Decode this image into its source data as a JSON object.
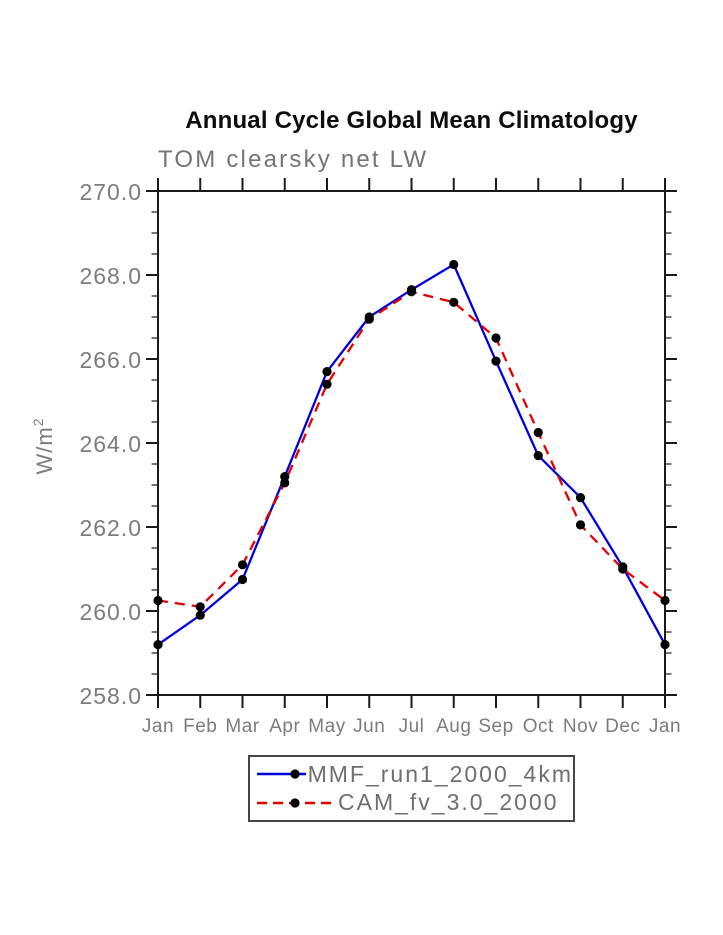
{
  "page": {
    "background": "#ffffff"
  },
  "header": {
    "title": "Annual Cycle Global Mean Climatology",
    "subtitle": "TOM clearsky net LW"
  },
  "chart_data": {
    "type": "line",
    "title": "Annual Cycle Global Mean Climatology",
    "subtitle": "TOM clearsky net LW",
    "ylabel_base": "W/m",
    "ylabel_exponent": "2",
    "categories": [
      "Jan",
      "Feb",
      "Mar",
      "Apr",
      "May",
      "Jun",
      "Jul",
      "Aug",
      "Sep",
      "Oct",
      "Nov",
      "Dec",
      "Jan"
    ],
    "series": [
      {
        "name": "MMF_run1_2000_4km",
        "color": "#0000e0",
        "line_style": "solid",
        "marker": "filled-circle",
        "marker_color": "#000000",
        "values": [
          259.2,
          259.9,
          260.75,
          263.2,
          265.7,
          267.0,
          267.65,
          268.25,
          265.95,
          263.7,
          262.7,
          261.05,
          259.2
        ]
      },
      {
        "name": "CAM_fv_3.0_2000",
        "color": "#e60000",
        "line_style": "dashed",
        "marker": "filled-circle",
        "marker_color": "#000000",
        "values": [
          260.25,
          260.1,
          261.1,
          263.05,
          265.4,
          266.95,
          267.6,
          267.35,
          266.5,
          264.25,
          262.05,
          261.0,
          260.25
        ]
      }
    ],
    "ylim": [
      258.0,
      270.0
    ],
    "y_major_step": 2.0,
    "y_minor_step": 0.5,
    "y_tick_labels": [
      "258.0",
      "260.0",
      "262.0",
      "264.0",
      "266.0",
      "268.0",
      "270.0"
    ],
    "grid": false,
    "legend_position": "bottom-center",
    "axis_color": "#1a1a1a",
    "tick_label_color": "#7c7c7c"
  }
}
